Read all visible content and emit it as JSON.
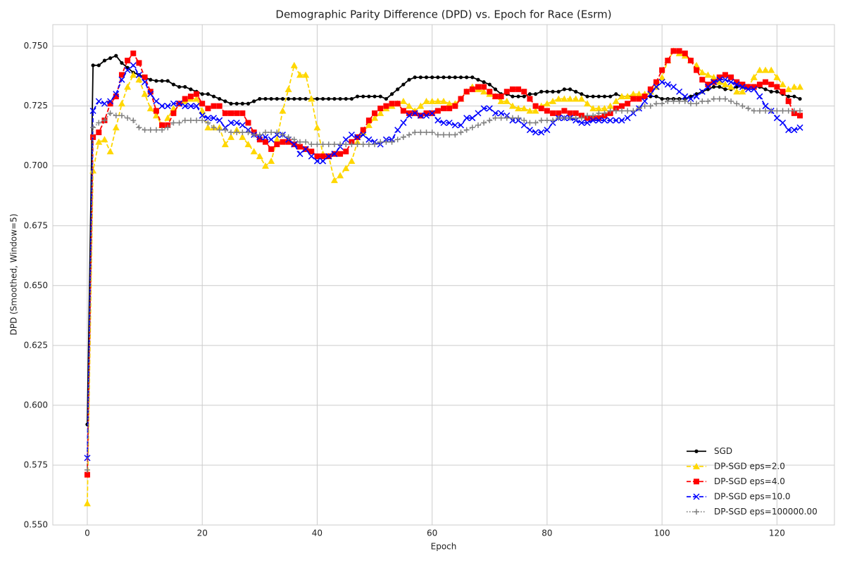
{
  "chart_data": {
    "type": "line",
    "title": "Demographic Parity Difference (DPD) vs. Epoch for Race (Esrm)",
    "x_label": "Epoch",
    "y_label": "DPD (Smoothed, Window=5)",
    "x": [
      0,
      1,
      2,
      3,
      4,
      5,
      6,
      7,
      8,
      9,
      10,
      11,
      12,
      13,
      14,
      15,
      16,
      17,
      18,
      19,
      20,
      21,
      22,
      23,
      24,
      25,
      26,
      27,
      28,
      29,
      30,
      31,
      32,
      33,
      34,
      35,
      36,
      37,
      38,
      39,
      40,
      41,
      42,
      43,
      44,
      45,
      46,
      47,
      48,
      49,
      50,
      51,
      52,
      53,
      54,
      55,
      56,
      57,
      58,
      59,
      60,
      61,
      62,
      63,
      64,
      65,
      66,
      67,
      68,
      69,
      70,
      71,
      72,
      73,
      74,
      75,
      76,
      77,
      78,
      79,
      80,
      81,
      82,
      83,
      84,
      85,
      86,
      87,
      88,
      89,
      90,
      91,
      92,
      93,
      94,
      95,
      96,
      97,
      98,
      99,
      100,
      101,
      102,
      103,
      104,
      105,
      106,
      107,
      108,
      109,
      110,
      111,
      112,
      113,
      114,
      115,
      116,
      117,
      118,
      119,
      120,
      121,
      122,
      123,
      124
    ],
    "xlim": [
      -6,
      130
    ],
    "ylim": [
      0.55,
      0.759
    ],
    "xticks": [
      0,
      20,
      40,
      60,
      80,
      100,
      120
    ],
    "yticks": [
      {
        "value": 0.55,
        "label": "0.550"
      },
      0.575,
      {
        "value": 0.6,
        "label": "0.600"
      },
      0.625,
      {
        "value": 0.65,
        "label": "0.650"
      },
      0.675,
      {
        "value": 0.7,
        "label": "0.700"
      },
      0.725,
      {
        "value": 0.75,
        "label": "0.750"
      }
    ],
    "grid": true,
    "legend": "lower right",
    "series": [
      {
        "name": "SGD",
        "color": "#000000",
        "marker": "circle",
        "linestyle": "solid",
        "values": [
          0.592,
          0.742,
          0.742,
          0.744,
          0.745,
          0.746,
          0.743,
          0.741,
          0.739,
          0.738,
          0.737,
          0.736,
          0.7355,
          0.7355,
          0.7355,
          0.734,
          0.733,
          0.733,
          0.732,
          0.731,
          0.73,
          0.73,
          0.729,
          0.728,
          0.727,
          0.726,
          0.726,
          0.726,
          0.726,
          0.727,
          0.728,
          0.728,
          0.728,
          0.728,
          0.728,
          0.728,
          0.728,
          0.728,
          0.728,
          0.728,
          0.728,
          0.728,
          0.728,
          0.728,
          0.728,
          0.728,
          0.728,
          0.729,
          0.729,
          0.729,
          0.729,
          0.729,
          0.728,
          0.73,
          0.732,
          0.734,
          0.736,
          0.737,
          0.737,
          0.737,
          0.737,
          0.737,
          0.737,
          0.737,
          0.737,
          0.737,
          0.737,
          0.737,
          0.736,
          0.735,
          0.734,
          0.732,
          0.73,
          0.73,
          0.729,
          0.729,
          0.729,
          0.73,
          0.73,
          0.731,
          0.731,
          0.731,
          0.731,
          0.732,
          0.732,
          0.731,
          0.73,
          0.729,
          0.729,
          0.729,
          0.729,
          0.729,
          0.73,
          0.729,
          0.729,
          0.729,
          0.729,
          0.729,
          0.729,
          0.729,
          0.728,
          0.728,
          0.728,
          0.728,
          0.728,
          0.729,
          0.73,
          0.731,
          0.732,
          0.733,
          0.733,
          0.732,
          0.732,
          0.733,
          0.733,
          0.733,
          0.733,
          0.733,
          0.732,
          0.731,
          0.731,
          0.73,
          0.729,
          0.729,
          0.728
        ]
      },
      {
        "name": "DP-SGD eps=2.0",
        "color": "#ffd700",
        "marker": "triangle",
        "linestyle": "dashed",
        "values": [
          0.559,
          0.698,
          0.71,
          0.711,
          0.706,
          0.716,
          0.726,
          0.733,
          0.738,
          0.736,
          0.73,
          0.724,
          0.721,
          0.717,
          0.72,
          0.724,
          0.726,
          0.727,
          0.728,
          0.728,
          0.723,
          0.716,
          0.716,
          0.716,
          0.709,
          0.712,
          0.715,
          0.712,
          0.709,
          0.706,
          0.704,
          0.7,
          0.702,
          0.711,
          0.723,
          0.732,
          0.742,
          0.738,
          0.738,
          0.728,
          0.716,
          0.705,
          0.704,
          0.694,
          0.696,
          0.699,
          0.702,
          0.71,
          0.714,
          0.717,
          0.72,
          0.722,
          0.724,
          0.725,
          0.726,
          0.727,
          0.725,
          0.723,
          0.725,
          0.727,
          0.727,
          0.727,
          0.727,
          0.726,
          0.726,
          0.728,
          0.731,
          0.733,
          0.732,
          0.731,
          0.73,
          0.729,
          0.727,
          0.727,
          0.725,
          0.724,
          0.724,
          0.723,
          0.723,
          0.725,
          0.726,
          0.727,
          0.728,
          0.728,
          0.728,
          0.728,
          0.728,
          0.726,
          0.724,
          0.724,
          0.724,
          0.725,
          0.727,
          0.729,
          0.729,
          0.73,
          0.73,
          0.73,
          0.731,
          0.733,
          0.737,
          0.744,
          0.748,
          0.747,
          0.746,
          0.744,
          0.742,
          0.739,
          0.738,
          0.737,
          0.735,
          0.734,
          0.733,
          0.731,
          0.731,
          0.733,
          0.737,
          0.74,
          0.74,
          0.74,
          0.737,
          0.734,
          0.732,
          0.733,
          0.733
        ]
      },
      {
        "name": "DP-SGD eps=4.0",
        "color": "#ff0000",
        "marker": "square",
        "linestyle": "dashed",
        "values": [
          0.571,
          0.712,
          0.714,
          0.719,
          0.726,
          0.729,
          0.738,
          0.744,
          0.747,
          0.743,
          0.737,
          0.731,
          0.723,
          0.717,
          0.717,
          0.722,
          0.726,
          0.728,
          0.729,
          0.73,
          0.726,
          0.724,
          0.725,
          0.725,
          0.722,
          0.722,
          0.722,
          0.722,
          0.718,
          0.714,
          0.711,
          0.71,
          0.707,
          0.709,
          0.71,
          0.71,
          0.709,
          0.708,
          0.707,
          0.706,
          0.704,
          0.704,
          0.704,
          0.705,
          0.705,
          0.706,
          0.71,
          0.712,
          0.715,
          0.719,
          0.722,
          0.724,
          0.725,
          0.726,
          0.726,
          0.723,
          0.722,
          0.722,
          0.721,
          0.722,
          0.722,
          0.723,
          0.724,
          0.724,
          0.725,
          0.728,
          0.731,
          0.732,
          0.733,
          0.733,
          0.731,
          0.729,
          0.729,
          0.731,
          0.732,
          0.732,
          0.731,
          0.728,
          0.725,
          0.724,
          0.723,
          0.722,
          0.722,
          0.723,
          0.722,
          0.722,
          0.721,
          0.72,
          0.72,
          0.72,
          0.721,
          0.722,
          0.724,
          0.725,
          0.726,
          0.728,
          0.728,
          0.729,
          0.732,
          0.735,
          0.74,
          0.744,
          0.748,
          0.748,
          0.747,
          0.744,
          0.74,
          0.736,
          0.734,
          0.735,
          0.737,
          0.738,
          0.737,
          0.735,
          0.734,
          0.733,
          0.733,
          0.734,
          0.735,
          0.734,
          0.733,
          0.731,
          0.727,
          0.722,
          0.721
        ]
      },
      {
        "name": "DP-SGD eps=10.0",
        "color": "#0000ff",
        "marker": "x",
        "linestyle": "dashed",
        "values": [
          0.578,
          0.723,
          0.727,
          0.726,
          0.727,
          0.73,
          0.736,
          0.74,
          0.742,
          0.738,
          0.735,
          0.73,
          0.727,
          0.725,
          0.725,
          0.726,
          0.726,
          0.725,
          0.725,
          0.725,
          0.721,
          0.72,
          0.72,
          0.719,
          0.716,
          0.718,
          0.718,
          0.717,
          0.715,
          0.713,
          0.712,
          0.712,
          0.711,
          0.713,
          0.713,
          0.711,
          0.709,
          0.705,
          0.707,
          0.704,
          0.702,
          0.702,
          0.704,
          0.705,
          0.708,
          0.711,
          0.713,
          0.712,
          0.713,
          0.711,
          0.71,
          0.709,
          0.711,
          0.711,
          0.715,
          0.718,
          0.721,
          0.722,
          0.721,
          0.721,
          0.722,
          0.719,
          0.718,
          0.718,
          0.717,
          0.717,
          0.72,
          0.72,
          0.722,
          0.724,
          0.724,
          0.722,
          0.722,
          0.721,
          0.719,
          0.719,
          0.717,
          0.715,
          0.714,
          0.714,
          0.715,
          0.718,
          0.72,
          0.72,
          0.72,
          0.719,
          0.718,
          0.718,
          0.719,
          0.719,
          0.719,
          0.719,
          0.719,
          0.719,
          0.72,
          0.722,
          0.724,
          0.727,
          0.73,
          0.733,
          0.735,
          0.734,
          0.733,
          0.731,
          0.729,
          0.728,
          0.729,
          0.731,
          0.733,
          0.735,
          0.736,
          0.736,
          0.735,
          0.734,
          0.733,
          0.732,
          0.732,
          0.729,
          0.725,
          0.723,
          0.72,
          0.718,
          0.715,
          0.715,
          0.716
        ]
      },
      {
        "name": "DP-SGD eps=100000.00",
        "color": "#808080",
        "marker": "plus",
        "linestyle": "dotted",
        "values": [
          0.573,
          0.716,
          0.718,
          0.719,
          0.722,
          0.721,
          0.721,
          0.72,
          0.719,
          0.716,
          0.715,
          0.715,
          0.715,
          0.715,
          0.716,
          0.718,
          0.718,
          0.719,
          0.719,
          0.719,
          0.719,
          0.718,
          0.716,
          0.715,
          0.715,
          0.714,
          0.714,
          0.714,
          0.714,
          0.713,
          0.713,
          0.714,
          0.714,
          0.714,
          0.713,
          0.712,
          0.711,
          0.71,
          0.71,
          0.709,
          0.709,
          0.709,
          0.709,
          0.709,
          0.709,
          0.709,
          0.709,
          0.709,
          0.709,
          0.709,
          0.709,
          0.71,
          0.71,
          0.71,
          0.711,
          0.712,
          0.713,
          0.714,
          0.714,
          0.714,
          0.714,
          0.713,
          0.713,
          0.713,
          0.713,
          0.714,
          0.715,
          0.716,
          0.717,
          0.718,
          0.719,
          0.72,
          0.72,
          0.72,
          0.72,
          0.72,
          0.719,
          0.718,
          0.718,
          0.719,
          0.719,
          0.719,
          0.72,
          0.72,
          0.72,
          0.72,
          0.72,
          0.721,
          0.721,
          0.722,
          0.722,
          0.723,
          0.723,
          0.723,
          0.723,
          0.723,
          0.724,
          0.725,
          0.725,
          0.726,
          0.726,
          0.727,
          0.727,
          0.727,
          0.727,
          0.726,
          0.726,
          0.727,
          0.727,
          0.728,
          0.728,
          0.728,
          0.727,
          0.726,
          0.725,
          0.724,
          0.723,
          0.723,
          0.723,
          0.723,
          0.723,
          0.723,
          0.723,
          0.723,
          0.723
        ]
      }
    ]
  }
}
